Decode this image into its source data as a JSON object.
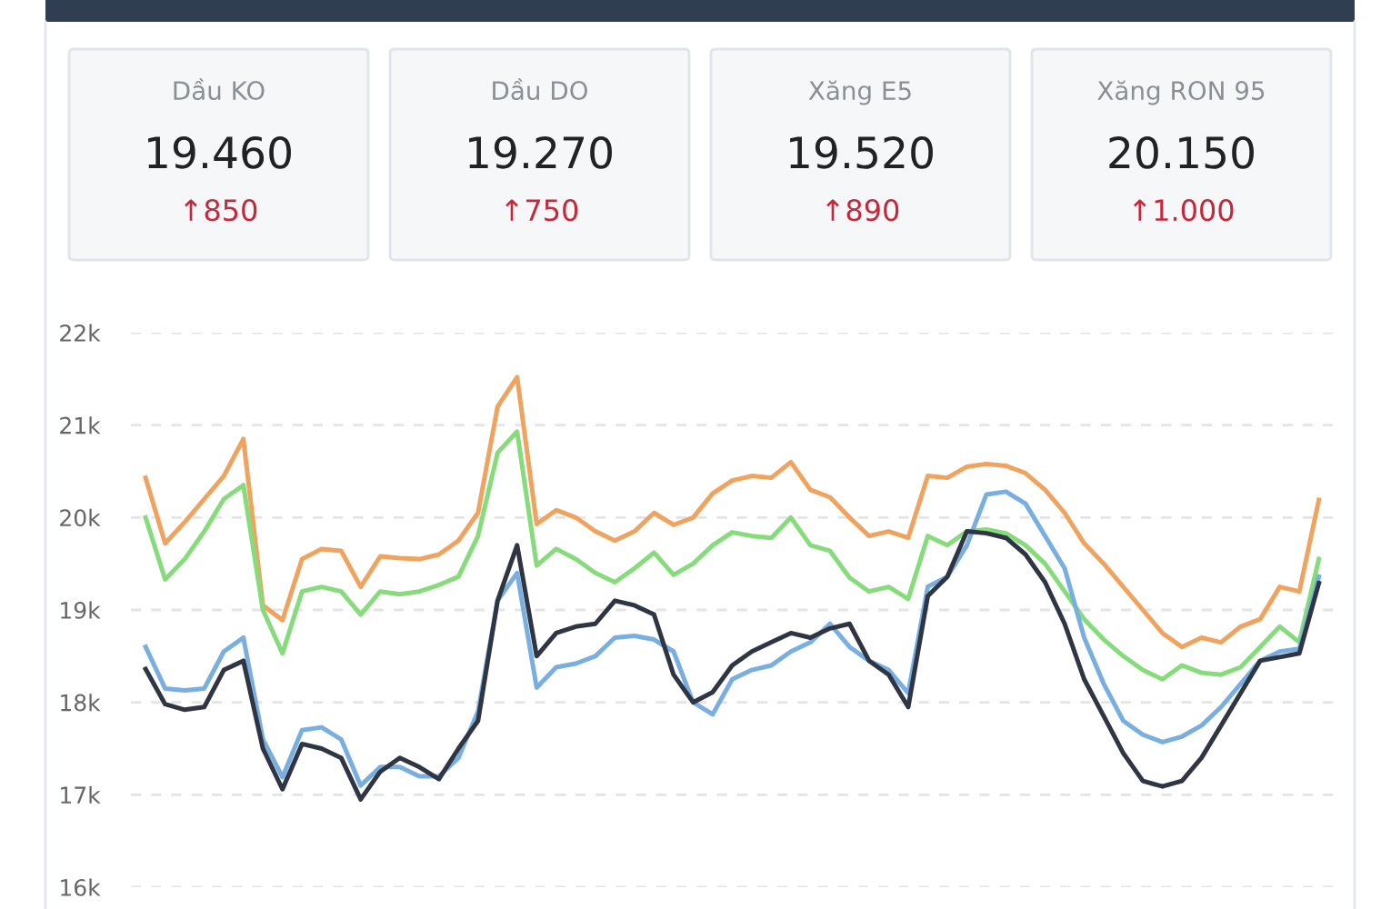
{
  "chart_data": [
    {
      "type": "other",
      "annotations": [
        "Dầu KO",
        "19.460",
        "↑850",
        "Dầu DO",
        "19.270",
        "↑750",
        "Xăng E5",
        "19.520",
        "↑890",
        "Xăng RON 95",
        "20.150",
        "↑1.000"
      ]
    },
    {
      "type": "line",
      "categories": [
        null,
        null,
        null,
        null,
        null,
        null,
        null,
        null,
        null,
        null,
        null,
        null,
        null,
        null,
        null,
        null,
        null,
        null,
        null,
        null,
        null,
        null,
        null,
        null,
        null,
        null,
        null,
        null,
        null,
        null,
        null,
        null,
        null,
        null,
        null,
        null,
        null,
        null,
        null,
        null,
        null,
        null,
        null,
        null,
        null,
        null,
        null,
        null,
        null,
        null,
        null,
        null,
        null,
        null,
        null,
        null,
        null,
        null,
        null,
        null,
        null
      ],
      "series": [
        {
          "color": "#f0a35e",
          "values": [
            20.43,
            19.72,
            19.95,
            20.2,
            20.45,
            20.85,
            19.05,
            18.89,
            19.55,
            19.66,
            19.64,
            19.25,
            19.58,
            19.56,
            19.55,
            19.6,
            19.75,
            20.05,
            21.2,
            21.52,
            19.93,
            20.08,
            20.0,
            19.85,
            19.75,
            19.85,
            20.05,
            19.92,
            20.0,
            20.26,
            20.4,
            20.45,
            20.43,
            20.6,
            20.3,
            20.22,
            20.0,
            19.8,
            19.85,
            19.78,
            20.45,
            20.43,
            20.55,
            20.58,
            20.56,
            20.48,
            20.3,
            20.05,
            19.72,
            19.5,
            19.25,
            19.0,
            18.75,
            18.6,
            18.7,
            18.65,
            18.82,
            18.9,
            19.25,
            19.2,
            20.19
          ]
        },
        {
          "color": "#86db7b",
          "values": [
            20.0,
            19.33,
            19.55,
            19.85,
            20.2,
            20.35,
            19.0,
            18.53,
            19.2,
            19.25,
            19.2,
            18.95,
            19.2,
            19.17,
            19.2,
            19.27,
            19.36,
            19.8,
            20.7,
            20.93,
            19.48,
            19.66,
            19.55,
            19.4,
            19.3,
            19.45,
            19.62,
            19.38,
            19.5,
            19.7,
            19.84,
            19.8,
            19.78,
            20.0,
            19.7,
            19.64,
            19.35,
            19.2,
            19.25,
            19.12,
            19.8,
            19.7,
            19.85,
            19.87,
            19.83,
            19.7,
            19.5,
            19.2,
            18.9,
            18.68,
            18.5,
            18.35,
            18.25,
            18.4,
            18.32,
            18.3,
            18.38,
            18.6,
            18.82,
            18.65,
            19.55
          ]
        },
        {
          "color": "#78aee0",
          "values": [
            18.6,
            18.15,
            18.13,
            18.15,
            18.55,
            18.7,
            17.6,
            17.19,
            17.7,
            17.73,
            17.6,
            17.1,
            17.3,
            17.3,
            17.2,
            17.2,
            17.4,
            17.9,
            19.1,
            19.4,
            18.16,
            18.38,
            18.42,
            18.5,
            18.7,
            18.72,
            18.68,
            18.55,
            18.0,
            17.87,
            18.25,
            18.35,
            18.4,
            18.55,
            18.65,
            18.85,
            18.6,
            18.45,
            18.35,
            18.1,
            19.25,
            19.36,
            19.7,
            20.25,
            20.28,
            20.15,
            19.8,
            19.45,
            18.7,
            18.2,
            17.8,
            17.65,
            17.57,
            17.63,
            17.75,
            17.95,
            18.2,
            18.45,
            18.55,
            18.58,
            19.36
          ]
        },
        {
          "color": "#2f3542",
          "values": [
            18.36,
            17.98,
            17.92,
            17.95,
            18.35,
            18.45,
            17.5,
            17.06,
            17.55,
            17.5,
            17.4,
            16.95,
            17.25,
            17.4,
            17.3,
            17.17,
            17.5,
            17.8,
            19.1,
            19.7,
            18.5,
            18.75,
            18.82,
            18.85,
            19.1,
            19.05,
            18.95,
            18.3,
            18.0,
            18.11,
            18.4,
            18.55,
            18.65,
            18.75,
            18.7,
            18.8,
            18.85,
            18.45,
            18.3,
            17.95,
            19.15,
            19.36,
            19.85,
            19.83,
            19.78,
            19.6,
            19.3,
            18.85,
            18.25,
            17.85,
            17.45,
            17.15,
            17.09,
            17.15,
            17.4,
            17.75,
            18.1,
            18.45,
            18.49,
            18.53,
            19.29
          ]
        }
      ],
      "ylim": [
        16,
        22
      ],
      "yticks": [
        {
          "value": 16,
          "label": "16k"
        },
        {
          "value": 17,
          "label": "17k"
        },
        {
          "value": 18,
          "label": "18k"
        },
        {
          "value": 19,
          "label": "19k"
        },
        {
          "value": 20,
          "label": "20k"
        },
        {
          "value": 21,
          "label": "21k"
        },
        {
          "value": 22,
          "label": "22k"
        }
      ],
      "grid": "y",
      "tick_labels": "y",
      "line_style": "solid",
      "marker": "none"
    }
  ]
}
